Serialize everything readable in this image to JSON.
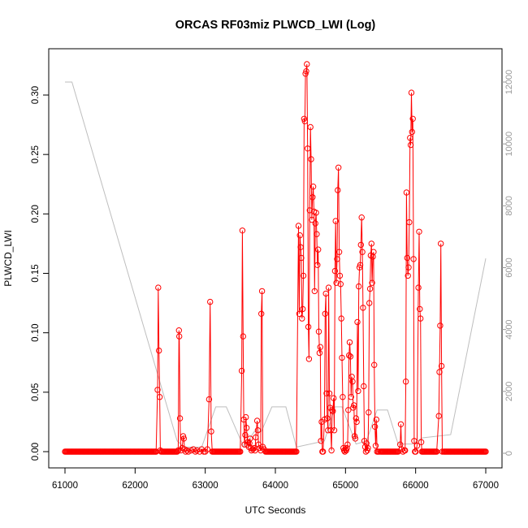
{
  "chart_data": {
    "type": "line",
    "title": "ORCAS RF03miz PLWCD_LWI (Log)",
    "xlabel": "UTC Seconds",
    "ylabel": "PLWCD_LWI",
    "xlim": [
      61000,
      67000
    ],
    "ylim": [
      0,
      0.33
    ],
    "x_ticks": [
      61000,
      62000,
      63000,
      64000,
      65000,
      66000,
      67000
    ],
    "y_ticks": [
      0.0,
      0.05,
      0.1,
      0.15,
      0.2,
      0.25,
      0.3
    ],
    "y_tick_labels": [
      "0.00",
      "0.05",
      "0.10",
      "0.15",
      "0.20",
      "0.25",
      "0.30"
    ],
    "y2_lim": [
      0,
      12500
    ],
    "y2_ticks": [
      0,
      2000,
      4000,
      6000,
      8000,
      10000,
      12000
    ],
    "y2_tick_labels": [
      "0",
      "2000",
      "4000",
      "6000",
      "8000",
      "10000",
      "12000"
    ],
    "colors": {
      "series": "#ff0000",
      "altitude": "#bebebe"
    },
    "series": [
      {
        "values": [
          [
            61000,
            0
          ],
          [
            61050,
            0
          ],
          [
            61100,
            0
          ],
          [
            61150,
            0
          ],
          [
            61200,
            0
          ],
          [
            61250,
            0
          ],
          [
            61300,
            0
          ],
          [
            61350,
            0
          ],
          [
            61400,
            0
          ],
          [
            61450,
            0
          ],
          [
            61500,
            0
          ],
          [
            61550,
            0
          ],
          [
            61600,
            0
          ],
          [
            61650,
            0
          ],
          [
            61700,
            0
          ],
          [
            61750,
            0
          ],
          [
            61800,
            0
          ],
          [
            61850,
            0
          ],
          [
            61900,
            0
          ],
          [
            61950,
            0
          ],
          [
            62000,
            0
          ],
          [
            62050,
            0
          ],
          [
            62100,
            0
          ],
          [
            62150,
            0
          ],
          [
            62200,
            0
          ],
          [
            62250,
            0
          ],
          [
            62300,
            0
          ],
          [
            62320,
            0.052
          ],
          [
            62330,
            0.138
          ],
          [
            62340,
            0.085
          ],
          [
            62350,
            0.046
          ],
          [
            62360,
            0.001
          ],
          [
            62370,
            0
          ],
          [
            62400,
            0
          ],
          [
            62450,
            0
          ],
          [
            62500,
            0
          ],
          [
            62550,
            0
          ],
          [
            62600,
            0
          ],
          [
            62615,
            0.001
          ],
          [
            62625,
            0.102
          ],
          [
            62630,
            0.097
          ],
          [
            62640,
            0.028
          ],
          [
            62650,
            0.001
          ],
          [
            62670,
            0.003
          ],
          [
            62685,
            0.013
          ],
          [
            62695,
            0.011
          ],
          [
            62705,
            0.002
          ],
          [
            62720,
            0
          ],
          [
            62740,
            0.001
          ],
          [
            62760,
            0
          ],
          [
            62800,
            0.001
          ],
          [
            62830,
            0.002
          ],
          [
            62860,
            0
          ],
          [
            62880,
            0.001
          ],
          [
            62920,
            0
          ],
          [
            62950,
            0.002
          ],
          [
            62980,
            0
          ],
          [
            63000,
            0
          ],
          [
            63030,
            0.002
          ],
          [
            63055,
            0.044
          ],
          [
            63070,
            0.126
          ],
          [
            63085,
            0.017
          ],
          [
            63100,
            0
          ],
          [
            63150,
            0
          ],
          [
            63200,
            0
          ],
          [
            63250,
            0
          ],
          [
            63300,
            0
          ],
          [
            63350,
            0
          ],
          [
            63400,
            0
          ],
          [
            63450,
            0
          ],
          [
            63500,
            0
          ],
          [
            63520,
            0.068
          ],
          [
            63530,
            0.186
          ],
          [
            63540,
            0.097
          ],
          [
            63550,
            0.027
          ],
          [
            63560,
            0.006
          ],
          [
            63570,
            0.014
          ],
          [
            63580,
            0.029
          ],
          [
            63590,
            0.02
          ],
          [
            63600,
            0.006
          ],
          [
            63610,
            0.008
          ],
          [
            63620,
            0.004
          ],
          [
            63630,
            0.007
          ],
          [
            63640,
            0.011
          ],
          [
            63650,
            0.003
          ],
          [
            63660,
            0.001
          ],
          [
            63680,
            0.002
          ],
          [
            63700,
            0.003
          ],
          [
            63710,
            0.001
          ],
          [
            63720,
            0.012
          ],
          [
            63740,
            0.026
          ],
          [
            63750,
            0.018
          ],
          [
            63760,
            0.006
          ],
          [
            63775,
            0.003
          ],
          [
            63790,
            0.001
          ],
          [
            63800,
            0.116
          ],
          [
            63810,
            0.135
          ],
          [
            63820,
            0.004
          ],
          [
            63840,
            0.002
          ],
          [
            63860,
            0
          ],
          [
            63900,
            0
          ],
          [
            63950,
            0
          ],
          [
            64000,
            0
          ],
          [
            64050,
            0
          ],
          [
            64100,
            0
          ],
          [
            64150,
            0
          ],
          [
            64200,
            0
          ],
          [
            64250,
            0
          ],
          [
            64300,
            0
          ],
          [
            64330,
            0.19
          ],
          [
            64340,
            0.116
          ],
          [
            64350,
            0.182
          ],
          [
            64360,
            0.172
          ],
          [
            64370,
            0.163
          ],
          [
            64380,
            0.112
          ],
          [
            64390,
            0.12
          ],
          [
            64400,
            0.148
          ],
          [
            64410,
            0.28
          ],
          [
            64420,
            0.278
          ],
          [
            64430,
            0.318
          ],
          [
            64440,
            0.32
          ],
          [
            64450,
            0.326
          ],
          [
            64460,
            0.255
          ],
          [
            64470,
            0.105
          ],
          [
            64480,
            0.078
          ],
          [
            64490,
            0.203
          ],
          [
            64500,
            0.273
          ],
          [
            64510,
            0.246
          ],
          [
            64520,
            0.195
          ],
          [
            64530,
            0.214
          ],
          [
            64540,
            0.223
          ],
          [
            64550,
            0.202
          ],
          [
            64560,
            0.135
          ],
          [
            64570,
            0.192
          ],
          [
            64580,
            0.201
          ],
          [
            64590,
            0.183
          ],
          [
            64600,
            0.157
          ],
          [
            64610,
            0.17
          ],
          [
            64620,
            0.101
          ],
          [
            64630,
            0.083
          ],
          [
            64640,
            0.088
          ],
          [
            64650,
            0.009
          ],
          [
            64660,
            0.025
          ],
          [
            64670,
            0
          ],
          [
            64680,
            0
          ],
          [
            64700,
            0.027
          ],
          [
            64710,
            0.116
          ],
          [
            64720,
            0.133
          ],
          [
            64730,
            0.049
          ],
          [
            64740,
            0.028
          ],
          [
            64750,
            0.018
          ],
          [
            64760,
            0.138
          ],
          [
            64770,
            0.049
          ],
          [
            64780,
            0.037
          ],
          [
            64790,
            0.018
          ],
          [
            64800,
            0.001
          ],
          [
            64810,
            0.035
          ],
          [
            64820,
            0.034
          ],
          [
            64830,
            0.045
          ],
          [
            64840,
            0.018
          ],
          [
            64850,
            0.152
          ],
          [
            64860,
            0.194
          ],
          [
            64870,
            0.142
          ],
          [
            64880,
            0.162
          ],
          [
            64890,
            0.22
          ],
          [
            64900,
            0.239
          ],
          [
            64910,
            0.168
          ],
          [
            64920,
            0.148
          ],
          [
            64930,
            0.141
          ],
          [
            64940,
            0.112
          ],
          [
            64950,
            0.079
          ],
          [
            64960,
            0.046
          ],
          [
            64970,
            0.003
          ],
          [
            64980,
            0.001
          ],
          [
            64990,
            0
          ],
          [
            65000,
            0.002
          ],
          [
            65010,
            0.001
          ],
          [
            65020,
            0.003
          ],
          [
            65030,
            0.006
          ],
          [
            65040,
            0.035
          ],
          [
            65050,
            0.081
          ],
          [
            65060,
            0.092
          ],
          [
            65070,
            0.08
          ],
          [
            65080,
            0.046
          ],
          [
            65090,
            0.063
          ],
          [
            65100,
            0.059
          ],
          [
            65110,
            0.037
          ],
          [
            65120,
            0.039
          ],
          [
            65130,
            0.013
          ],
          [
            65140,
            0.011
          ],
          [
            65150,
            0.028
          ],
          [
            65160,
            0.025
          ],
          [
            65170,
            0.109
          ],
          [
            65180,
            0.051
          ],
          [
            65190,
            0.139
          ],
          [
            65200,
            0.155
          ],
          [
            65210,
            0.157
          ],
          [
            65220,
            0.174
          ],
          [
            65230,
            0.197
          ],
          [
            65240,
            0.168
          ],
          [
            65250,
            0.121
          ],
          [
            65260,
            0.055
          ],
          [
            65270,
            0.009
          ],
          [
            65280,
            0.004
          ],
          [
            65290,
            0
          ],
          [
            65300,
            0.007
          ],
          [
            65310,
            0.001
          ],
          [
            65320,
            0.003
          ],
          [
            65330,
            0.033
          ],
          [
            65340,
            0.125
          ],
          [
            65350,
            0.137
          ],
          [
            65360,
            0.165
          ],
          [
            65370,
            0.175
          ],
          [
            65380,
            0.142
          ],
          [
            65390,
            0.164
          ],
          [
            65400,
            0.168
          ],
          [
            65410,
            0.073
          ],
          [
            65420,
            0.021
          ],
          [
            65430,
            0.005
          ],
          [
            65440,
            0.027
          ],
          [
            65450,
            0
          ],
          [
            65480,
            0
          ],
          [
            65500,
            0
          ],
          [
            65550,
            0
          ],
          [
            65600,
            0
          ],
          [
            65650,
            0
          ],
          [
            65700,
            0
          ],
          [
            65750,
            0
          ],
          [
            65780,
            0.006
          ],
          [
            65790,
            0.023
          ],
          [
            65800,
            0.002
          ],
          [
            65820,
            0
          ],
          [
            65840,
            0.001
          ],
          [
            65850,
            0.001
          ],
          [
            65860,
            0.059
          ],
          [
            65870,
            0.218
          ],
          [
            65880,
            0.163
          ],
          [
            65890,
            0.148
          ],
          [
            65900,
            0.155
          ],
          [
            65910,
            0.193
          ],
          [
            65920,
            0.264
          ],
          [
            65930,
            0.258
          ],
          [
            65940,
            0.302
          ],
          [
            65950,
            0.269
          ],
          [
            65960,
            0.28
          ],
          [
            65970,
            0.162
          ],
          [
            65980,
            0.009
          ],
          [
            65990,
            0
          ],
          [
            66000,
            0
          ],
          [
            66020,
            0.005
          ],
          [
            66040,
            0.138
          ],
          [
            66050,
            0.185
          ],
          [
            66060,
            0.12
          ],
          [
            66070,
            0.112
          ],
          [
            66080,
            0.008
          ],
          [
            66090,
            0
          ],
          [
            66150,
            0
          ],
          [
            66200,
            0
          ],
          [
            66250,
            0
          ],
          [
            66300,
            0
          ],
          [
            66330,
            0.03
          ],
          [
            66340,
            0.067
          ],
          [
            66350,
            0.106
          ],
          [
            66360,
            0.175
          ],
          [
            66370,
            0.072
          ],
          [
            66380,
            0
          ],
          [
            66400,
            0
          ],
          [
            66450,
            0
          ],
          [
            66500,
            0
          ],
          [
            66550,
            0
          ],
          [
            66600,
            0
          ],
          [
            66650,
            0
          ],
          [
            66700,
            0
          ],
          [
            66750,
            0
          ],
          [
            66800,
            0
          ],
          [
            66850,
            0
          ],
          [
            66900,
            0
          ],
          [
            66950,
            0
          ],
          [
            67000,
            0
          ]
        ]
      },
      {
        "name": "",
        "axis": "right",
        "values": [
          [
            61000,
            12000
          ],
          [
            61100,
            12000
          ],
          [
            62600,
            400
          ],
          [
            62700,
            200
          ],
          [
            62950,
            200
          ],
          [
            63150,
            1500
          ],
          [
            63300,
            1500
          ],
          [
            63550,
            200
          ],
          [
            63700,
            700
          ],
          [
            63800,
            700
          ],
          [
            63950,
            1500
          ],
          [
            64150,
            1500
          ],
          [
            64300,
            200
          ],
          [
            64500,
            300
          ],
          [
            64700,
            400
          ],
          [
            64850,
            1500
          ],
          [
            64950,
            1500
          ],
          [
            65150,
            300
          ],
          [
            65300,
            400
          ],
          [
            65450,
            1400
          ],
          [
            65600,
            1400
          ],
          [
            65750,
            300
          ],
          [
            65950,
            300
          ],
          [
            66100,
            500
          ],
          [
            66500,
            600
          ],
          [
            67000,
            6300
          ]
        ]
      }
    ]
  }
}
